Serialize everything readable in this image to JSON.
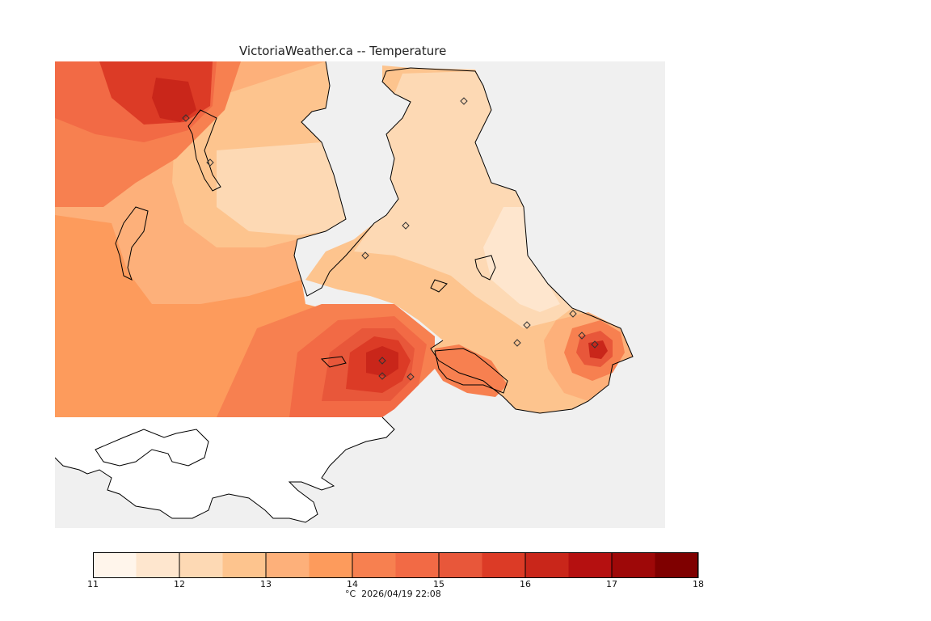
{
  "title": "VictoriaWeather.ca -- Temperature",
  "legend": {
    "ticks": [
      "11",
      "12",
      "13",
      "14",
      "15",
      "16",
      "17",
      "18"
    ],
    "colors": [
      "#fff5eb",
      "#fee6ce",
      "#fdd9b4",
      "#fdc48e",
      "#fdb07a",
      "#fd9b5c",
      "#f78050",
      "#f26a45",
      "#e8573a",
      "#dc3b26",
      "#c9261a",
      "#b51010",
      "#9e0808",
      "#7f0000"
    ],
    "footer": "°C  2026/04/19 22:08"
  },
  "colors": {
    "water": "#f0f0f0",
    "land_outside": "#ffffff",
    "coast_line": "#000000"
  },
  "stations": {
    "marker": "diamond-icon",
    "count": 13
  }
}
